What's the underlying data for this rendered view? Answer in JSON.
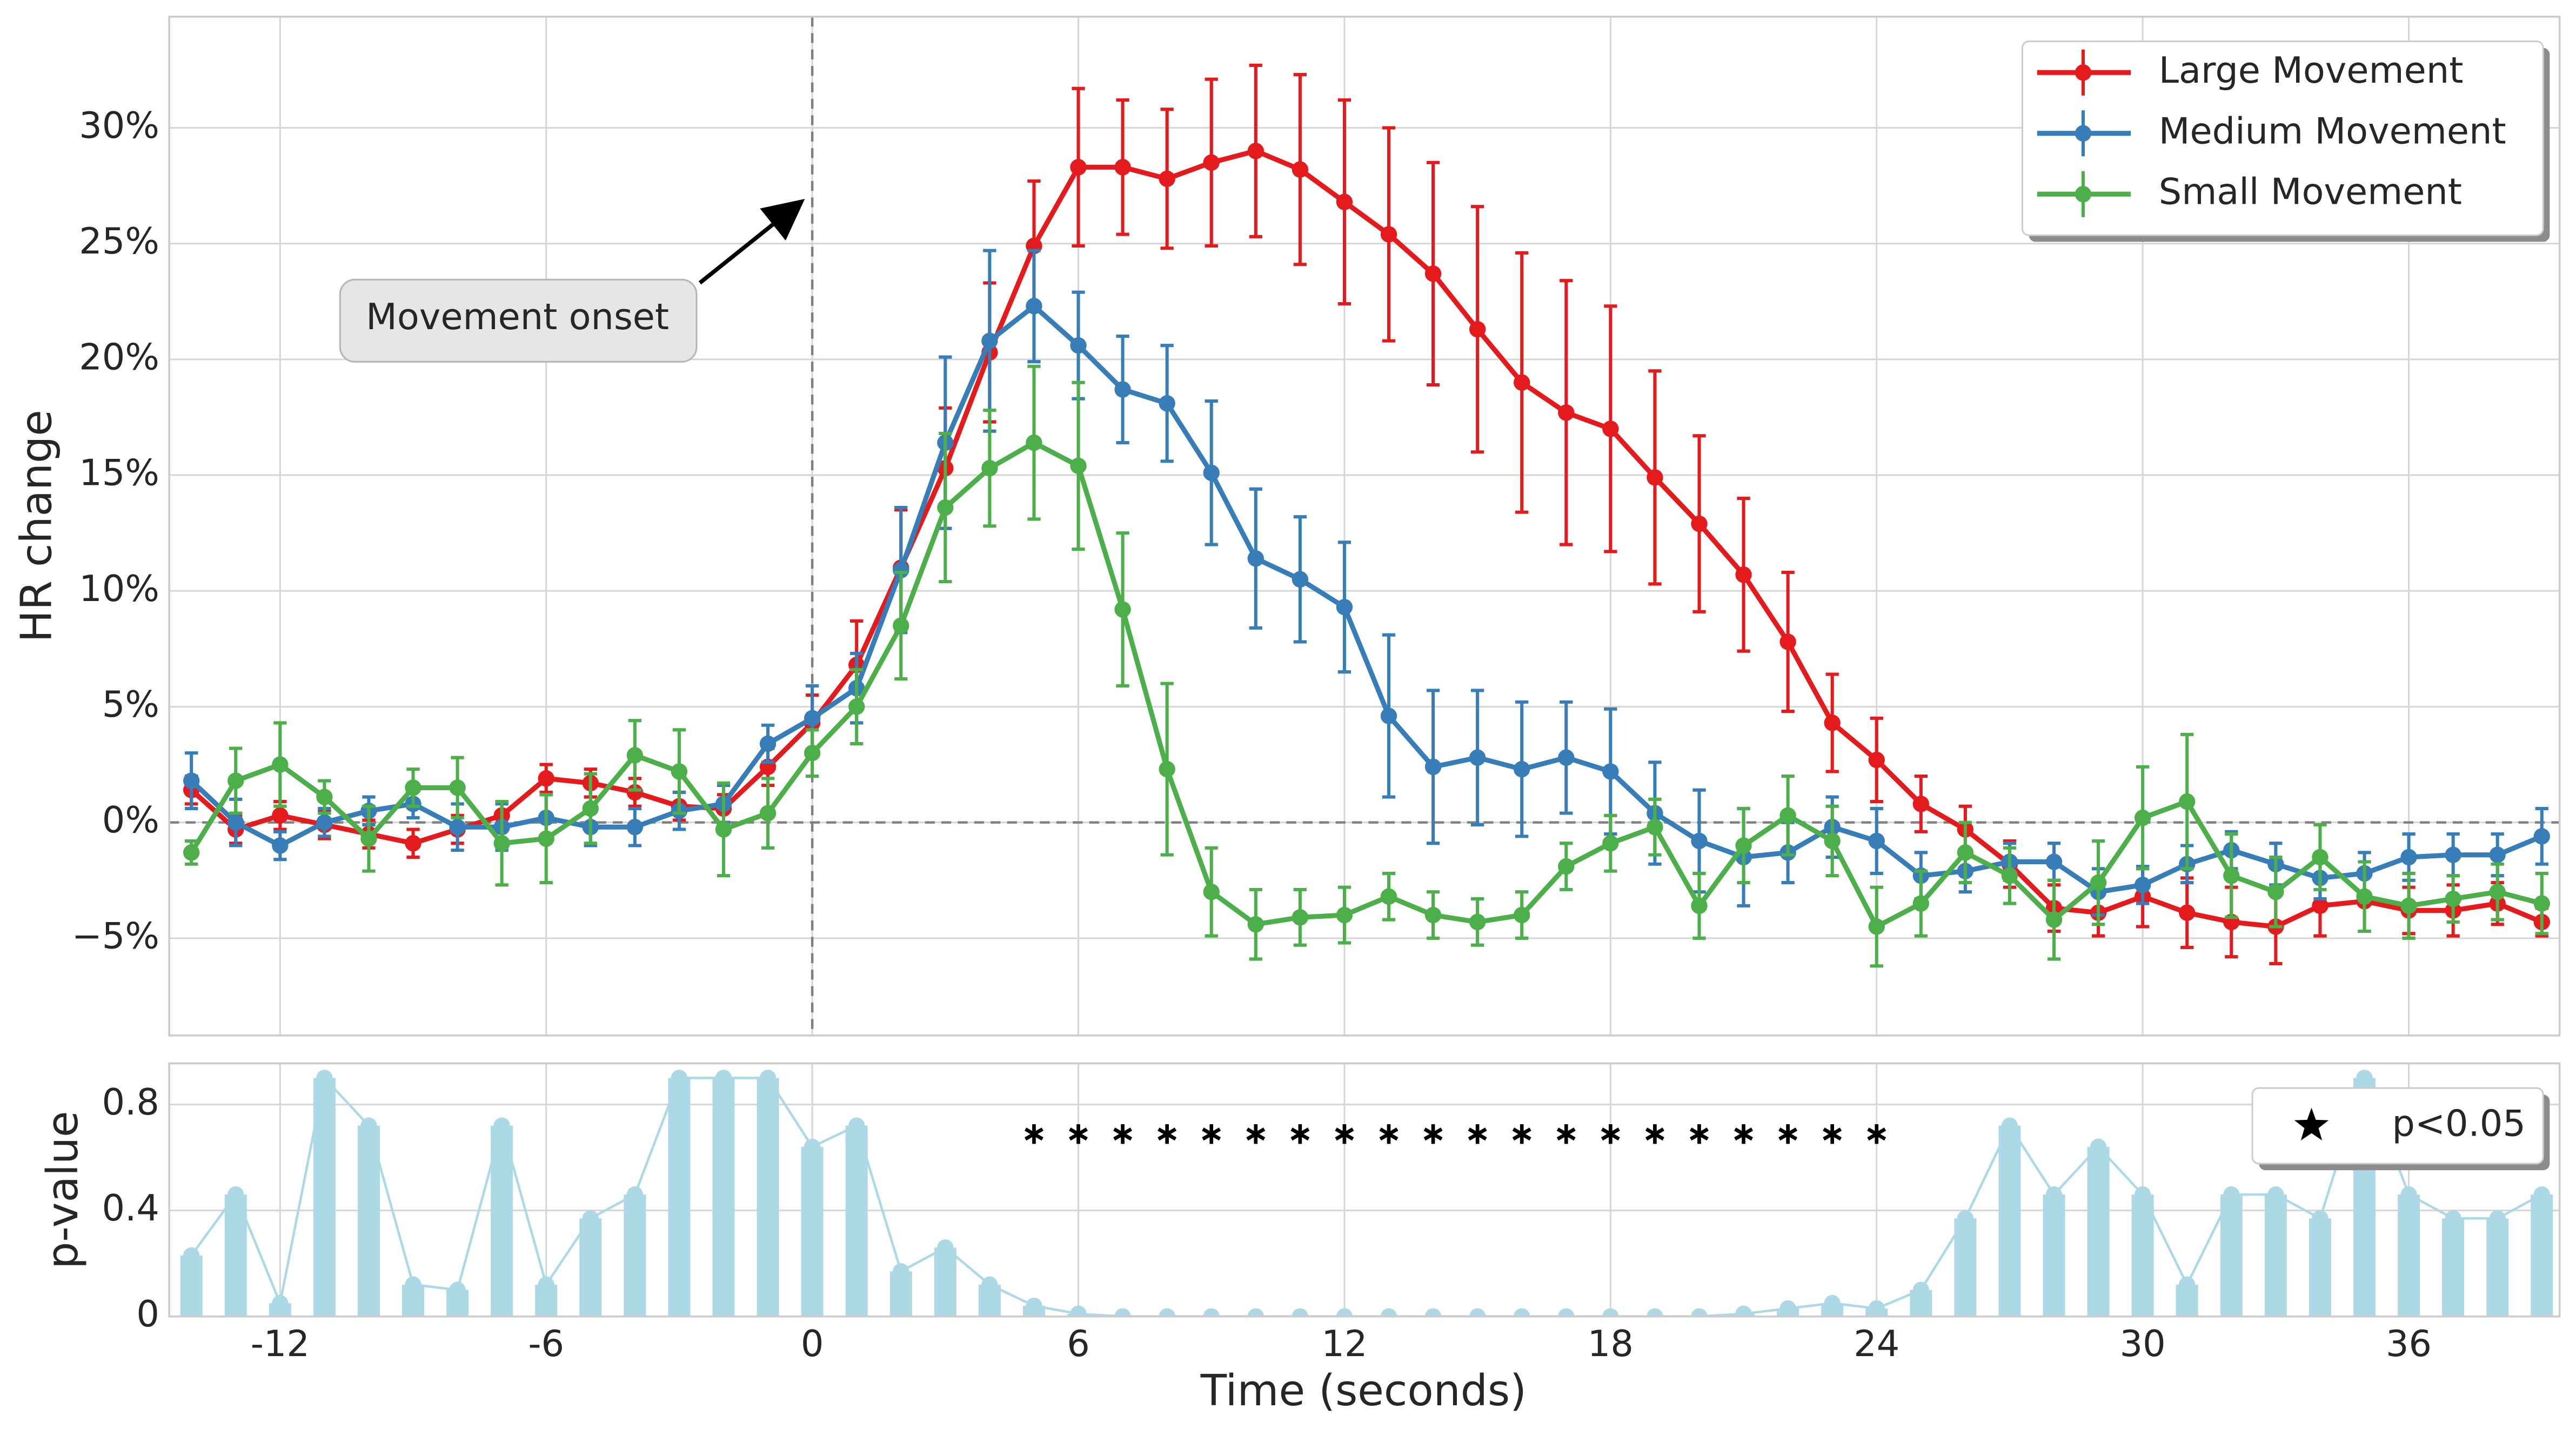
{
  "chart_data": [
    {
      "type": "line",
      "ylabel": "HR change",
      "annotation": {
        "text": "Movement onset"
      },
      "x": [
        -14,
        -13,
        -12,
        -11,
        -10,
        -9,
        -8,
        -7,
        -6,
        -5,
        -4,
        -3,
        -2,
        -1,
        0,
        1,
        2,
        3,
        4,
        5,
        6,
        7,
        8,
        9,
        10,
        11,
        12,
        13,
        14,
        15,
        16,
        17,
        18,
        19,
        20,
        21,
        22,
        23,
        24,
        25,
        26,
        27,
        28,
        29,
        30,
        31,
        32,
        33,
        34,
        35,
        36,
        37,
        38,
        39
      ],
      "xlim": [
        -14.5,
        39.4
      ],
      "xticks": [
        -12,
        -6,
        0,
        6,
        12,
        18,
        24,
        30,
        36
      ],
      "ylim": [
        -9.2,
        34.8
      ],
      "yticks": [
        {
          "value": -5,
          "label": "−5%"
        },
        {
          "value": 0,
          "label": "0%"
        },
        {
          "value": 5,
          "label": "5%"
        },
        {
          "value": 10,
          "label": "10%"
        },
        {
          "value": 15,
          "label": "15%"
        },
        {
          "value": 20,
          "label": "20%"
        },
        {
          "value": 25,
          "label": "25%"
        },
        {
          "value": 30,
          "label": "30%"
        }
      ],
      "grid": true,
      "legend": "upper right",
      "series": [
        {
          "name": "Large Movement",
          "color": "#e41a1c",
          "values": [
            1.4,
            -0.3,
            0.3,
            -0.1,
            -0.5,
            -0.9,
            -0.3,
            0.3,
            1.9,
            1.7,
            1.3,
            0.7,
            0.6,
            2.4,
            4.3,
            6.8,
            11.0,
            15.3,
            20.3,
            24.9,
            28.3,
            28.3,
            27.8,
            28.5,
            29.0,
            28.2,
            26.8,
            25.4,
            23.7,
            21.3,
            19.0,
            17.7,
            17.0,
            14.9,
            12.9,
            10.7,
            7.8,
            4.3,
            2.7,
            0.8,
            -0.3,
            -1.8,
            -3.7,
            -3.9,
            -3.2,
            -3.9,
            -4.3,
            -4.5,
            -3.6,
            -3.4,
            -3.8,
            -3.8,
            -3.5,
            -4.3
          ],
          "errors": [
            0.6,
            0.6,
            0.6,
            0.6,
            0.6,
            0.6,
            0.6,
            0.6,
            0.6,
            0.6,
            0.6,
            0.6,
            0.6,
            0.8,
            1.2,
            1.9,
            2.5,
            2.6,
            3.0,
            2.8,
            3.4,
            2.9,
            3.0,
            3.6,
            3.7,
            4.1,
            4.4,
            4.6,
            4.8,
            5.3,
            5.6,
            5.7,
            5.3,
            4.6,
            3.8,
            3.3,
            3.0,
            2.1,
            1.8,
            1.2,
            1.0,
            1.0,
            1.0,
            1.0,
            1.3,
            1.5,
            1.5,
            1.6,
            1.3,
            1.3,
            1.0,
            1.1,
            0.9,
            0.6
          ]
        },
        {
          "name": "Medium Movement",
          "color": "#377eb8",
          "values": [
            1.8,
            0.0,
            -1.0,
            0.0,
            0.5,
            0.8,
            -0.2,
            -0.2,
            0.2,
            -0.2,
            -0.2,
            0.5,
            0.8,
            3.4,
            4.5,
            5.8,
            10.9,
            16.4,
            20.8,
            22.3,
            20.6,
            18.7,
            18.1,
            15.1,
            11.4,
            10.5,
            9.3,
            4.6,
            2.4,
            2.8,
            2.3,
            2.8,
            2.2,
            0.4,
            -0.8,
            -1.5,
            -1.3,
            -0.2,
            -0.8,
            -2.3,
            -2.1,
            -1.7,
            -1.7,
            -3.0,
            -2.7,
            -1.8,
            -1.2,
            -1.8,
            -2.4,
            -2.2,
            -1.5,
            -1.4,
            -1.4,
            -0.6
          ],
          "errors": [
            1.2,
            1.0,
            0.6,
            0.6,
            0.6,
            0.6,
            1.0,
            1.0,
            1.0,
            0.8,
            0.8,
            0.8,
            0.8,
            0.8,
            1.4,
            1.5,
            2.7,
            3.7,
            3.9,
            2.4,
            2.3,
            2.3,
            2.5,
            3.1,
            3.0,
            2.7,
            2.8,
            3.5,
            3.3,
            2.9,
            2.9,
            2.4,
            2.7,
            2.2,
            2.2,
            2.1,
            1.3,
            1.3,
            1.4,
            1.0,
            0.9,
            0.8,
            0.8,
            1.0,
            0.8,
            0.8,
            0.8,
            0.9,
            0.9,
            0.9,
            1.0,
            0.9,
            0.9,
            1.2
          ]
        },
        {
          "name": "Small Movement",
          "color": "#4daf4a",
          "values": [
            -1.3,
            1.8,
            2.5,
            1.1,
            -0.7,
            1.5,
            1.5,
            -0.9,
            -0.7,
            0.6,
            2.9,
            2.2,
            -0.3,
            0.4,
            3.0,
            5.0,
            8.5,
            13.6,
            15.3,
            16.4,
            15.4,
            9.2,
            2.3,
            -3.0,
            -4.4,
            -4.1,
            -4.0,
            -3.2,
            -4.0,
            -4.3,
            -4.0,
            -1.9,
            -0.9,
            -0.2,
            -3.6,
            -1.0,
            0.3,
            -0.8,
            -4.5,
            -3.5,
            -1.3,
            -2.3,
            -4.2,
            -2.6,
            0.2,
            0.9,
            -2.3,
            -3.0,
            -1.5,
            -3.2,
            -3.6,
            -3.3,
            -3.0,
            -3.5
          ],
          "errors": [
            0.5,
            1.4,
            1.8,
            0.7,
            1.4,
            0.8,
            1.3,
            1.8,
            1.9,
            1.5,
            1.5,
            1.8,
            2.0,
            1.5,
            1.0,
            1.6,
            2.3,
            3.2,
            2.5,
            3.3,
            3.6,
            3.3,
            3.7,
            1.9,
            1.5,
            1.2,
            1.2,
            1.0,
            1.0,
            1.0,
            1.0,
            1.0,
            1.2,
            1.2,
            1.4,
            1.6,
            1.7,
            1.5,
            1.7,
            1.4,
            1.3,
            1.2,
            1.7,
            1.8,
            2.2,
            2.9,
            1.8,
            1.5,
            1.4,
            1.5,
            1.4,
            1.0,
            1.2,
            1.3
          ]
        }
      ]
    },
    {
      "type": "bar",
      "xlabel": "Time (seconds)",
      "ylabel": "p-value",
      "x": [
        -14,
        -13,
        -12,
        -11,
        -10,
        -9,
        -8,
        -7,
        -6,
        -5,
        -4,
        -3,
        -2,
        -1,
        0,
        1,
        2,
        3,
        4,
        5,
        6,
        7,
        8,
        9,
        10,
        11,
        12,
        13,
        14,
        15,
        16,
        17,
        18,
        19,
        20,
        21,
        22,
        23,
        24,
        25,
        26,
        27,
        28,
        29,
        30,
        31,
        32,
        33,
        34,
        35,
        36,
        37,
        38,
        39
      ],
      "values": [
        0.23,
        0.46,
        0.05,
        0.9,
        0.72,
        0.12,
        0.1,
        0.72,
        0.12,
        0.37,
        0.46,
        0.9,
        0.9,
        0.9,
        0.64,
        0.72,
        0.17,
        0.26,
        0.12,
        0.04,
        0.01,
        0,
        0,
        0,
        0,
        0,
        0,
        0,
        0,
        0,
        0,
        0,
        0,
        0,
        0,
        0.01,
        0.03,
        0.05,
        0.03,
        0.1,
        0.37,
        0.72,
        0.46,
        0.64,
        0.46,
        0.12,
        0.46,
        0.46,
        0.37,
        0.9,
        0.46,
        0.37,
        0.37,
        0.46
      ],
      "color": "#add8e6",
      "xlim": [
        -14.5,
        39.4
      ],
      "xticks": [
        -12,
        -6,
        0,
        6,
        12,
        18,
        24,
        30,
        36
      ],
      "ylim": [
        0,
        0.955
      ],
      "yticks": [
        0,
        0.4,
        0.8
      ],
      "grid": true,
      "legend": "upper right",
      "significance": {
        "name": "p<0.05",
        "x": [
          5,
          6,
          7,
          8,
          9,
          10,
          11,
          12,
          13,
          14,
          15,
          16,
          17,
          18,
          19,
          20,
          21,
          22,
          23,
          24
        ]
      }
    }
  ]
}
